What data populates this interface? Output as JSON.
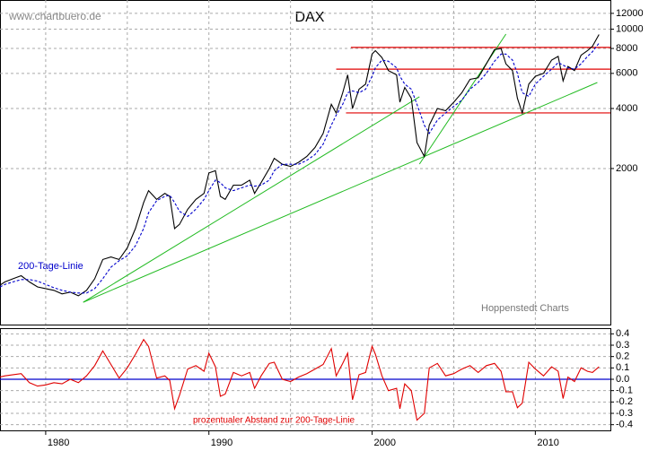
{
  "chart_data": [
    {
      "type": "line",
      "title": "DAX",
      "watermark": "www.chartbuero.de",
      "credit": "Hoppenstedt Charts",
      "log_y": true,
      "xlim": [
        1977.2,
        2014.6
      ],
      "ylim": [
        330,
        14000
      ],
      "yticks": [
        12000,
        10000,
        8000,
        6000,
        4000,
        2000
      ],
      "xgrid": [
        1980,
        1985,
        1990,
        1995,
        2000,
        2005,
        2010
      ],
      "x": [
        1977.2,
        1977.5,
        1978,
        1978.5,
        1979,
        1979.5,
        1980,
        1980.5,
        1981,
        1981.5,
        1982,
        1982.5,
        1983,
        1983.5,
        1984,
        1984.5,
        1985,
        1985.5,
        1986,
        1986.3,
        1986.8,
        1987.3,
        1987.6,
        1987.9,
        1988.2,
        1988.7,
        1989.2,
        1989.7,
        1990.0,
        1990.4,
        1990.7,
        1991.0,
        1991.5,
        1992,
        1992.5,
        1992.8,
        1993.2,
        1993.7,
        1994.0,
        1994.5,
        1995,
        1995.5,
        1996,
        1996.5,
        1997,
        1997.5,
        1997.8,
        1998.2,
        1998.5,
        1998.8,
        1999.2,
        1999.6,
        2000.0,
        2000.2,
        2000.6,
        2001.0,
        2001.5,
        2001.7,
        2002.0,
        2002.4,
        2002.75,
        2003.2,
        2003.5,
        2004,
        2004.5,
        2005,
        2005.5,
        2006,
        2006.5,
        2007,
        2007.5,
        2007.9,
        2008.2,
        2008.6,
        2008.9,
        2009.2,
        2009.6,
        2010,
        2010.5,
        2011,
        2011.4,
        2011.7,
        2012,
        2012.4,
        2012.8,
        2013.2,
        2013.5,
        2013.9
      ],
      "series": [
        {
          "color": "#000000",
          "values": [
            520,
            540,
            560,
            580,
            540,
            510,
            500,
            490,
            470,
            480,
            460,
            490,
            560,
            700,
            720,
            700,
            800,
            1000,
            1350,
            1550,
            1400,
            1500,
            1450,
            1000,
            1050,
            1250,
            1400,
            1500,
            1900,
            1950,
            1450,
            1400,
            1650,
            1650,
            1750,
            1500,
            1700,
            2000,
            2250,
            2100,
            2050,
            2150,
            2300,
            2550,
            3000,
            4200,
            3800,
            4800,
            5900,
            4000,
            5000,
            5300,
            7500,
            7800,
            7200,
            6200,
            5900,
            4300,
            5100,
            4500,
            2700,
            2300,
            3300,
            4000,
            3900,
            4300,
            4800,
            5600,
            5700,
            6700,
            7900,
            8000,
            6700,
            6200,
            4500,
            3800,
            5300,
            5800,
            6000,
            7000,
            7300,
            5500,
            6500,
            6200,
            7400,
            7800,
            8200,
            9400
          ]
        },
        {
          "name": "200-Tage-Linie",
          "color": "#0000cc",
          "dashed": true,
          "values": [
            510,
            525,
            540,
            555,
            555,
            545,
            525,
            505,
            490,
            480,
            475,
            475,
            500,
            560,
            640,
            690,
            730,
            820,
            1000,
            1200,
            1380,
            1450,
            1470,
            1350,
            1220,
            1150,
            1250,
            1400,
            1550,
            1750,
            1700,
            1600,
            1550,
            1600,
            1650,
            1630,
            1650,
            1750,
            1950,
            2100,
            2100,
            2100,
            2200,
            2350,
            2650,
            3300,
            3700,
            4200,
            4800,
            4900,
            4800,
            5000,
            5800,
            6400,
            7000,
            6900,
            6400,
            5800,
            5300,
            5000,
            4200,
            3300,
            3000,
            3500,
            3800,
            4100,
            4400,
            5000,
            5400,
            6000,
            6900,
            7500,
            7500,
            7000,
            6000,
            4800,
            4600,
            5300,
            5800,
            6300,
            6800,
            6600,
            6400,
            6300,
            6700,
            7300,
            7700,
            8500
          ]
        }
      ],
      "hlines": [
        {
          "value": 8100,
          "from": 1998.7,
          "color": "#e00000"
        },
        {
          "value": 6300,
          "from": 1997.8,
          "color": "#e00000"
        },
        {
          "value": 3800,
          "from": 1998.4,
          "color": "#e00000"
        }
      ],
      "trendlines": [
        {
          "x": [
            1982.3,
            2013.8
          ],
          "y": [
            427,
            5400
          ],
          "color": "#22bb22"
        },
        {
          "x": [
            1982.3,
            2002.9
          ],
          "y": [
            427,
            4580
          ],
          "color": "#22bb22"
        },
        {
          "x": [
            2002.9,
            2008.2
          ],
          "y": [
            2105,
            9450
          ],
          "color": "#22bb22"
        }
      ]
    },
    {
      "type": "line",
      "xlim": [
        1977.2,
        2014.6
      ],
      "ylim": [
        -0.45,
        0.45
      ],
      "yticks": [
        0.4,
        0.3,
        0.2,
        0.1,
        {
          "value": 0,
          "label": "0.0"
        },
        -0.1,
        -0.2,
        -0.3,
        -0.4
      ],
      "xticks": [
        1980,
        1990,
        2000,
        2010
      ],
      "xgrid": [
        1980,
        1985,
        1990,
        1995,
        2000,
        2005,
        2010
      ],
      "x": [
        1977.2,
        1977.5,
        1978,
        1978.5,
        1979,
        1979.5,
        1980,
        1980.5,
        1981,
        1981.5,
        1982,
        1982.5,
        1983,
        1983.5,
        1984,
        1984.5,
        1985,
        1985.5,
        1986,
        1986.3,
        1986.8,
        1987.3,
        1987.6,
        1987.9,
        1988.2,
        1988.7,
        1989.2,
        1989.7,
        1990.0,
        1990.4,
        1990.7,
        1991.0,
        1991.5,
        1992,
        1992.5,
        1992.8,
        1993.2,
        1993.7,
        1994.0,
        1994.5,
        1995,
        1995.5,
        1996,
        1996.5,
        1997,
        1997.5,
        1997.8,
        1998.2,
        1998.5,
        1998.8,
        1999.2,
        1999.6,
        2000.0,
        2000.2,
        2000.6,
        2001.0,
        2001.5,
        2001.7,
        2002.0,
        2002.4,
        2002.75,
        2003.2,
        2003.5,
        2004,
        2004.5,
        2005,
        2005.5,
        2006,
        2006.5,
        2007,
        2007.5,
        2007.9,
        2008.2,
        2008.6,
        2008.9,
        2009.2,
        2009.6,
        2010,
        2010.5,
        2011,
        2011.4,
        2011.7,
        2012,
        2012.4,
        2012.8,
        2013.2,
        2013.5,
        2013.9
      ],
      "series": [
        {
          "name": "prozentualer Abstand zur 200-Tage-Linie",
          "color": "#e00000",
          "values": [
            0.02,
            0.03,
            0.04,
            0.05,
            -0.03,
            -0.06,
            -0.05,
            -0.03,
            -0.04,
            0,
            -0.03,
            0.03,
            0.12,
            0.25,
            0.13,
            0.01,
            0.1,
            0.22,
            0.35,
            0.29,
            0.01,
            0.03,
            -0.01,
            -0.26,
            -0.14,
            0.09,
            0.12,
            0.07,
            0.23,
            0.11,
            -0.15,
            -0.13,
            0.06,
            0.03,
            0.06,
            -0.08,
            0.03,
            0.14,
            0.15,
            0,
            -0.02,
            0.02,
            0.05,
            0.09,
            0.13,
            0.27,
            0.03,
            0.14,
            0.23,
            -0.18,
            0.04,
            0.06,
            0.29,
            0.22,
            0.03,
            -0.1,
            -0.08,
            -0.26,
            -0.04,
            -0.1,
            -0.36,
            -0.3,
            0.1,
            0.14,
            0.03,
            0.05,
            0.09,
            0.12,
            0.06,
            0.12,
            0.14,
            0.07,
            -0.11,
            -0.11,
            -0.25,
            -0.21,
            0.15,
            0.09,
            0.03,
            0.11,
            0.07,
            -0.17,
            0.02,
            -0.02,
            0.1,
            0.07,
            0.06,
            0.11
          ]
        }
      ],
      "hlines": [
        {
          "value": 0,
          "color": "#0000cc"
        }
      ]
    }
  ]
}
